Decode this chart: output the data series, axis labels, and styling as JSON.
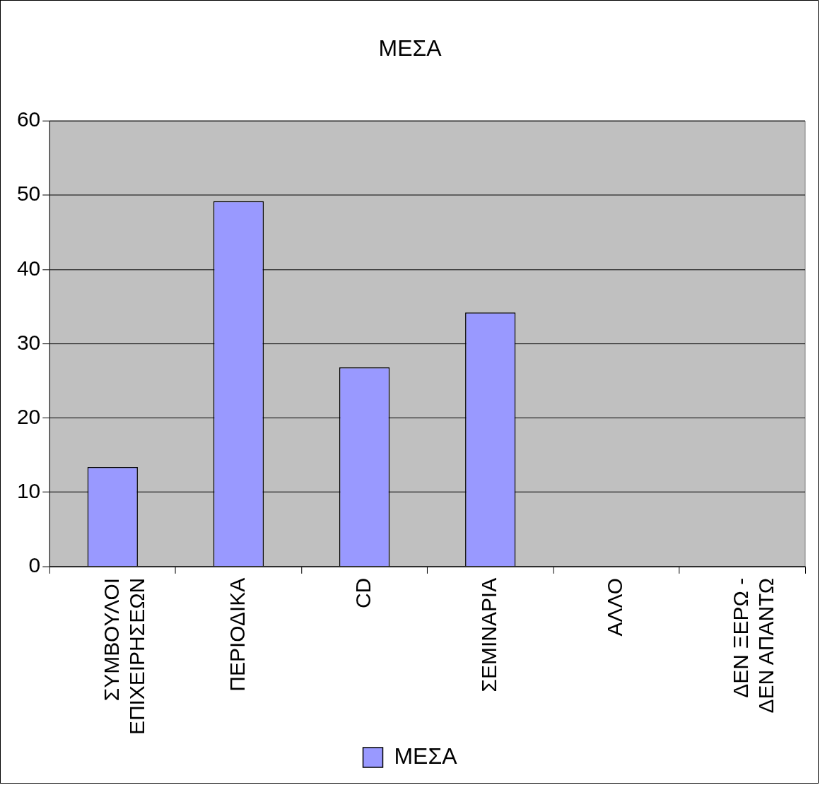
{
  "chart_data": {
    "type": "bar",
    "title": "ΜΕΣΑ",
    "categories": [
      "ΣΥΜΒΟΥΛΟΙ\nΕΠΙΧΕΙΡΗΣΕΩΝ",
      "ΠΕΡΙΟΔΙΚΑ",
      "CD",
      "ΣΕΜΙΝΑΡΙΑ",
      "ΑΛΛΟ",
      "ΔΕΝ ΞΕΡΩ -\nΔΕΝ ΑΠΑΝΤΩ"
    ],
    "series": [
      {
        "name": "ΜΕΣΑ",
        "color": "#9999ff",
        "values": [
          13.4,
          49.2,
          26.8,
          34.2,
          0,
          0
        ]
      }
    ],
    "ylim": [
      0,
      60
    ],
    "yticks": [
      0,
      10,
      20,
      30,
      40,
      50,
      60
    ],
    "grid": "y",
    "legend": "bottom"
  }
}
